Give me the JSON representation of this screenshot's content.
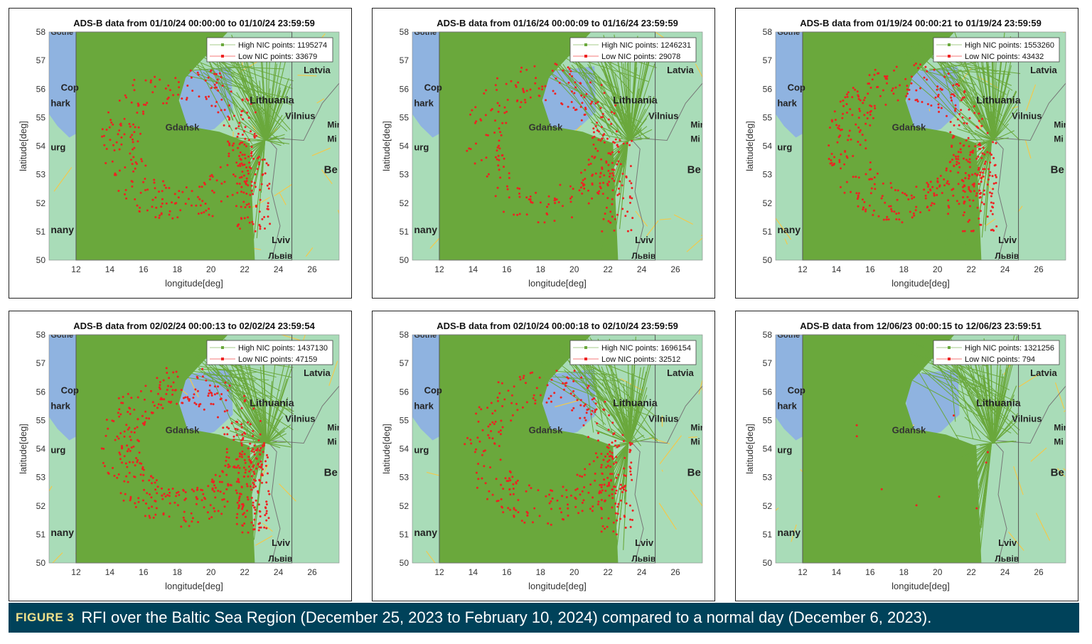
{
  "panels": [
    {
      "title": "ADS-B data from 01/10/24 00:00:00 to 01/10/24 23:59:59",
      "legend": [
        "High NIC points: 1195274",
        "Low NIC points: 33679"
      ]
    },
    {
      "title": "ADS-B data from 01/16/24 00:00:09 to 01/16/24 23:59:59",
      "legend": [
        "High NIC points: 1246231",
        "Low NIC points: 29078"
      ]
    },
    {
      "title": "ADS-B data from 01/19/24 00:00:21 to 01/19/24 23:59:59",
      "legend": [
        "High NIC points: 1553260",
        "Low NIC points: 43432"
      ]
    },
    {
      "title": "ADS-B data from 02/02/24 00:00:13 to 02/02/24 23:59:54",
      "legend": [
        "High NIC points: 1437130",
        "Low NIC points: 47159"
      ]
    },
    {
      "title": "ADS-B data from 02/10/24 00:00:18 to 02/10/24 23:59:59",
      "legend": [
        "High NIC points: 1696154",
        "Low NIC points: 32512"
      ]
    },
    {
      "title": "ADS-B data from 12/06/23 00:00:15 to 12/06/23 23:59:51",
      "legend": [
        "High NIC points: 1321256",
        "Low NIC points: 794"
      ]
    }
  ],
  "chart_data": [
    {
      "type": "scatter",
      "title": "ADS-B data from 01/10/24 00:00:00 to 01/10/24 23:59:59",
      "xlabel": "longitude[deg]",
      "ylabel": "latitude[deg]",
      "xlim": [
        10.4,
        27.6
      ],
      "ylim": [
        50,
        58
      ],
      "xticks": [
        12,
        14,
        16,
        18,
        20,
        22,
        24,
        26
      ],
      "yticks": [
        50,
        51,
        52,
        53,
        54,
        55,
        56,
        57,
        58
      ],
      "legend_placement": "top-right",
      "series": [
        {
          "name": "High NIC points",
          "count": 1195274,
          "color": "#6aa83c"
        },
        {
          "name": "Low NIC points",
          "count": 33679,
          "color": "#ee2222"
        }
      ]
    },
    {
      "type": "scatter",
      "title": "ADS-B data from 01/16/24 00:00:09 to 01/16/24 23:59:59",
      "xlabel": "longitude[deg]",
      "ylabel": "latitude[deg]",
      "xlim": [
        10.4,
        27.6
      ],
      "ylim": [
        50,
        58
      ],
      "xticks": [
        12,
        14,
        16,
        18,
        20,
        22,
        24,
        26
      ],
      "yticks": [
        50,
        51,
        52,
        53,
        54,
        55,
        56,
        57,
        58
      ],
      "legend_placement": "top-right",
      "series": [
        {
          "name": "High NIC points",
          "count": 1246231,
          "color": "#6aa83c"
        },
        {
          "name": "Low NIC points",
          "count": 29078,
          "color": "#ee2222"
        }
      ]
    },
    {
      "type": "scatter",
      "title": "ADS-B data from 01/19/24 00:00:21 to 01/19/24 23:59:59",
      "xlabel": "longitude[deg]",
      "ylabel": "latitude[deg]",
      "xlim": [
        10.4,
        27.6
      ],
      "ylim": [
        50,
        58
      ],
      "xticks": [
        12,
        14,
        16,
        18,
        20,
        22,
        24,
        26
      ],
      "yticks": [
        50,
        51,
        52,
        53,
        54,
        55,
        56,
        57,
        58
      ],
      "legend_placement": "top-right",
      "series": [
        {
          "name": "High NIC points",
          "count": 1553260,
          "color": "#6aa83c"
        },
        {
          "name": "Low NIC points",
          "count": 43432,
          "color": "#ee2222"
        }
      ]
    },
    {
      "type": "scatter",
      "title": "ADS-B data from 02/02/24 00:00:13 to 02/02/24 23:59:54",
      "xlabel": "longitude[deg]",
      "ylabel": "latitude[deg]",
      "xlim": [
        10.4,
        27.6
      ],
      "ylim": [
        50,
        58
      ],
      "xticks": [
        12,
        14,
        16,
        18,
        20,
        22,
        24,
        26
      ],
      "yticks": [
        50,
        51,
        52,
        53,
        54,
        55,
        56,
        57,
        58
      ],
      "legend_placement": "top-right",
      "series": [
        {
          "name": "High NIC points",
          "count": 1437130,
          "color": "#6aa83c"
        },
        {
          "name": "Low NIC points",
          "count": 47159,
          "color": "#ee2222"
        }
      ]
    },
    {
      "type": "scatter",
      "title": "ADS-B data from 02/10/24 00:00:18 to 02/10/24 23:59:59",
      "xlabel": "longitude[deg]",
      "ylabel": "latitude[deg]",
      "xlim": [
        10.4,
        27.6
      ],
      "ylim": [
        50,
        58
      ],
      "xticks": [
        12,
        14,
        16,
        18,
        20,
        22,
        24,
        26
      ],
      "yticks": [
        50,
        51,
        52,
        53,
        54,
        55,
        56,
        57,
        58
      ],
      "legend_placement": "top-right",
      "series": [
        {
          "name": "High NIC points",
          "count": 1696154,
          "color": "#6aa83c"
        },
        {
          "name": "Low NIC points",
          "count": 32512,
          "color": "#ee2222"
        }
      ]
    },
    {
      "type": "scatter",
      "title": "ADS-B data from 12/06/23 00:00:15 to 12/06/23 23:59:51",
      "xlabel": "longitude[deg]",
      "ylabel": "latitude[deg]",
      "xlim": [
        10.4,
        27.6
      ],
      "ylim": [
        50,
        58
      ],
      "xticks": [
        12,
        14,
        16,
        18,
        20,
        22,
        24,
        26
      ],
      "yticks": [
        50,
        51,
        52,
        53,
        54,
        55,
        56,
        57,
        58
      ],
      "legend_placement": "top-right",
      "series": [
        {
          "name": "High NIC points",
          "count": 1321256,
          "color": "#6aa83c"
        },
        {
          "name": "Low NIC points",
          "count": 794,
          "color": "#ee2222"
        }
      ]
    }
  ],
  "axes": {
    "xlabel": "longitude[deg]",
    "ylabel": "latitude[deg]",
    "xticks": [
      "12",
      "14",
      "16",
      "18",
      "20",
      "22",
      "24",
      "26"
    ],
    "yticks": [
      "50",
      "51",
      "52",
      "53",
      "54",
      "55",
      "56",
      "57",
      "58"
    ]
  },
  "map_labels": [
    "Gothe",
    "Cop",
    "hark",
    "urg",
    "nany",
    "Lithuania",
    "Vilnius",
    "Gdańsk",
    "Mir",
    "Mi",
    "Be",
    "Lviv",
    "Львів",
    "Latvia"
  ],
  "colors": {
    "high_nic": "#6aa83c",
    "low_nic": "#ee2222",
    "sea": "#8fb3e0",
    "land": "#a9dcb8",
    "caption_bg": "#00425a",
    "figure_label": "#f0e08a"
  },
  "caption": {
    "label": "FIGURE 3",
    "text": "RFI over the Baltic Sea Region (December 25, 2023 to February 10, 2024) compared to a normal day (December 6, 2023)."
  }
}
